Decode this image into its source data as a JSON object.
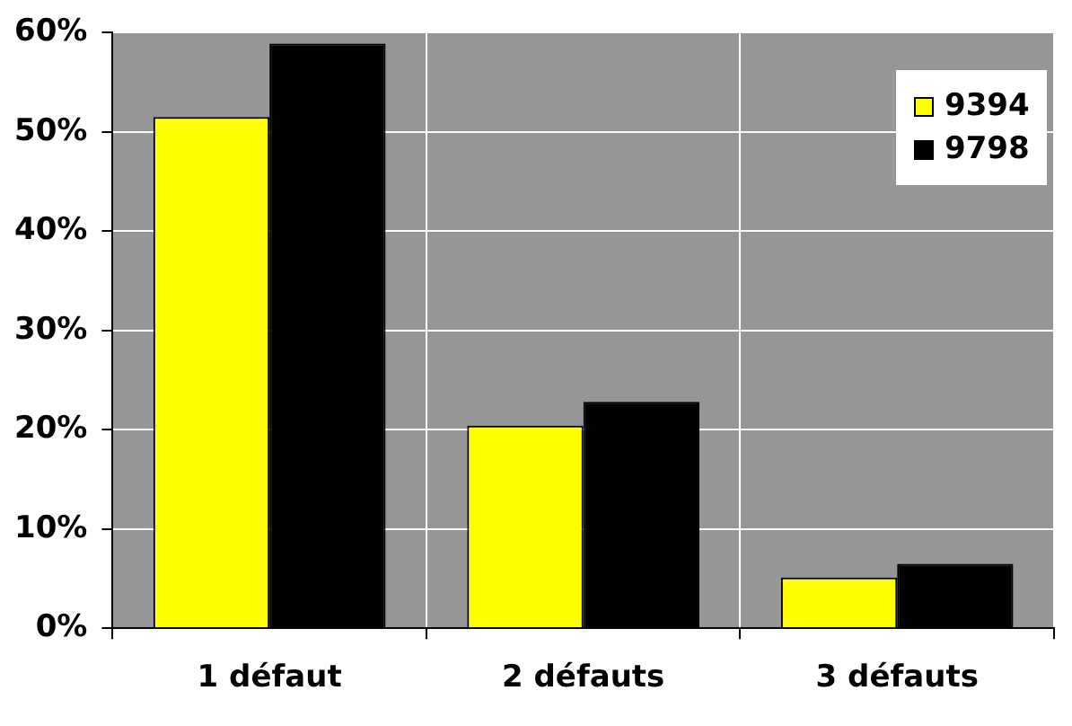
{
  "chart_data": {
    "type": "bar",
    "categories": [
      "1 défaut",
      "2 défauts",
      "3 défauts"
    ],
    "series": [
      {
        "name": "9394",
        "color": "#ffff00",
        "values": [
          51.5,
          20.4,
          5.1
        ]
      },
      {
        "name": "9798",
        "color": "#000000",
        "values": [
          58.9,
          22.8,
          6.5
        ]
      }
    ],
    "ylim": [
      0,
      60
    ],
    "yticks": [
      {
        "value": 0,
        "label": "0%"
      },
      {
        "value": 10,
        "label": "10%"
      },
      {
        "value": 20,
        "label": "20%"
      },
      {
        "value": 30,
        "label": "30%"
      },
      {
        "value": 40,
        "label": "40%"
      },
      {
        "value": 50,
        "label": "50%"
      },
      {
        "value": 60,
        "label": "60%"
      }
    ],
    "grid": true,
    "legend": "top right"
  }
}
